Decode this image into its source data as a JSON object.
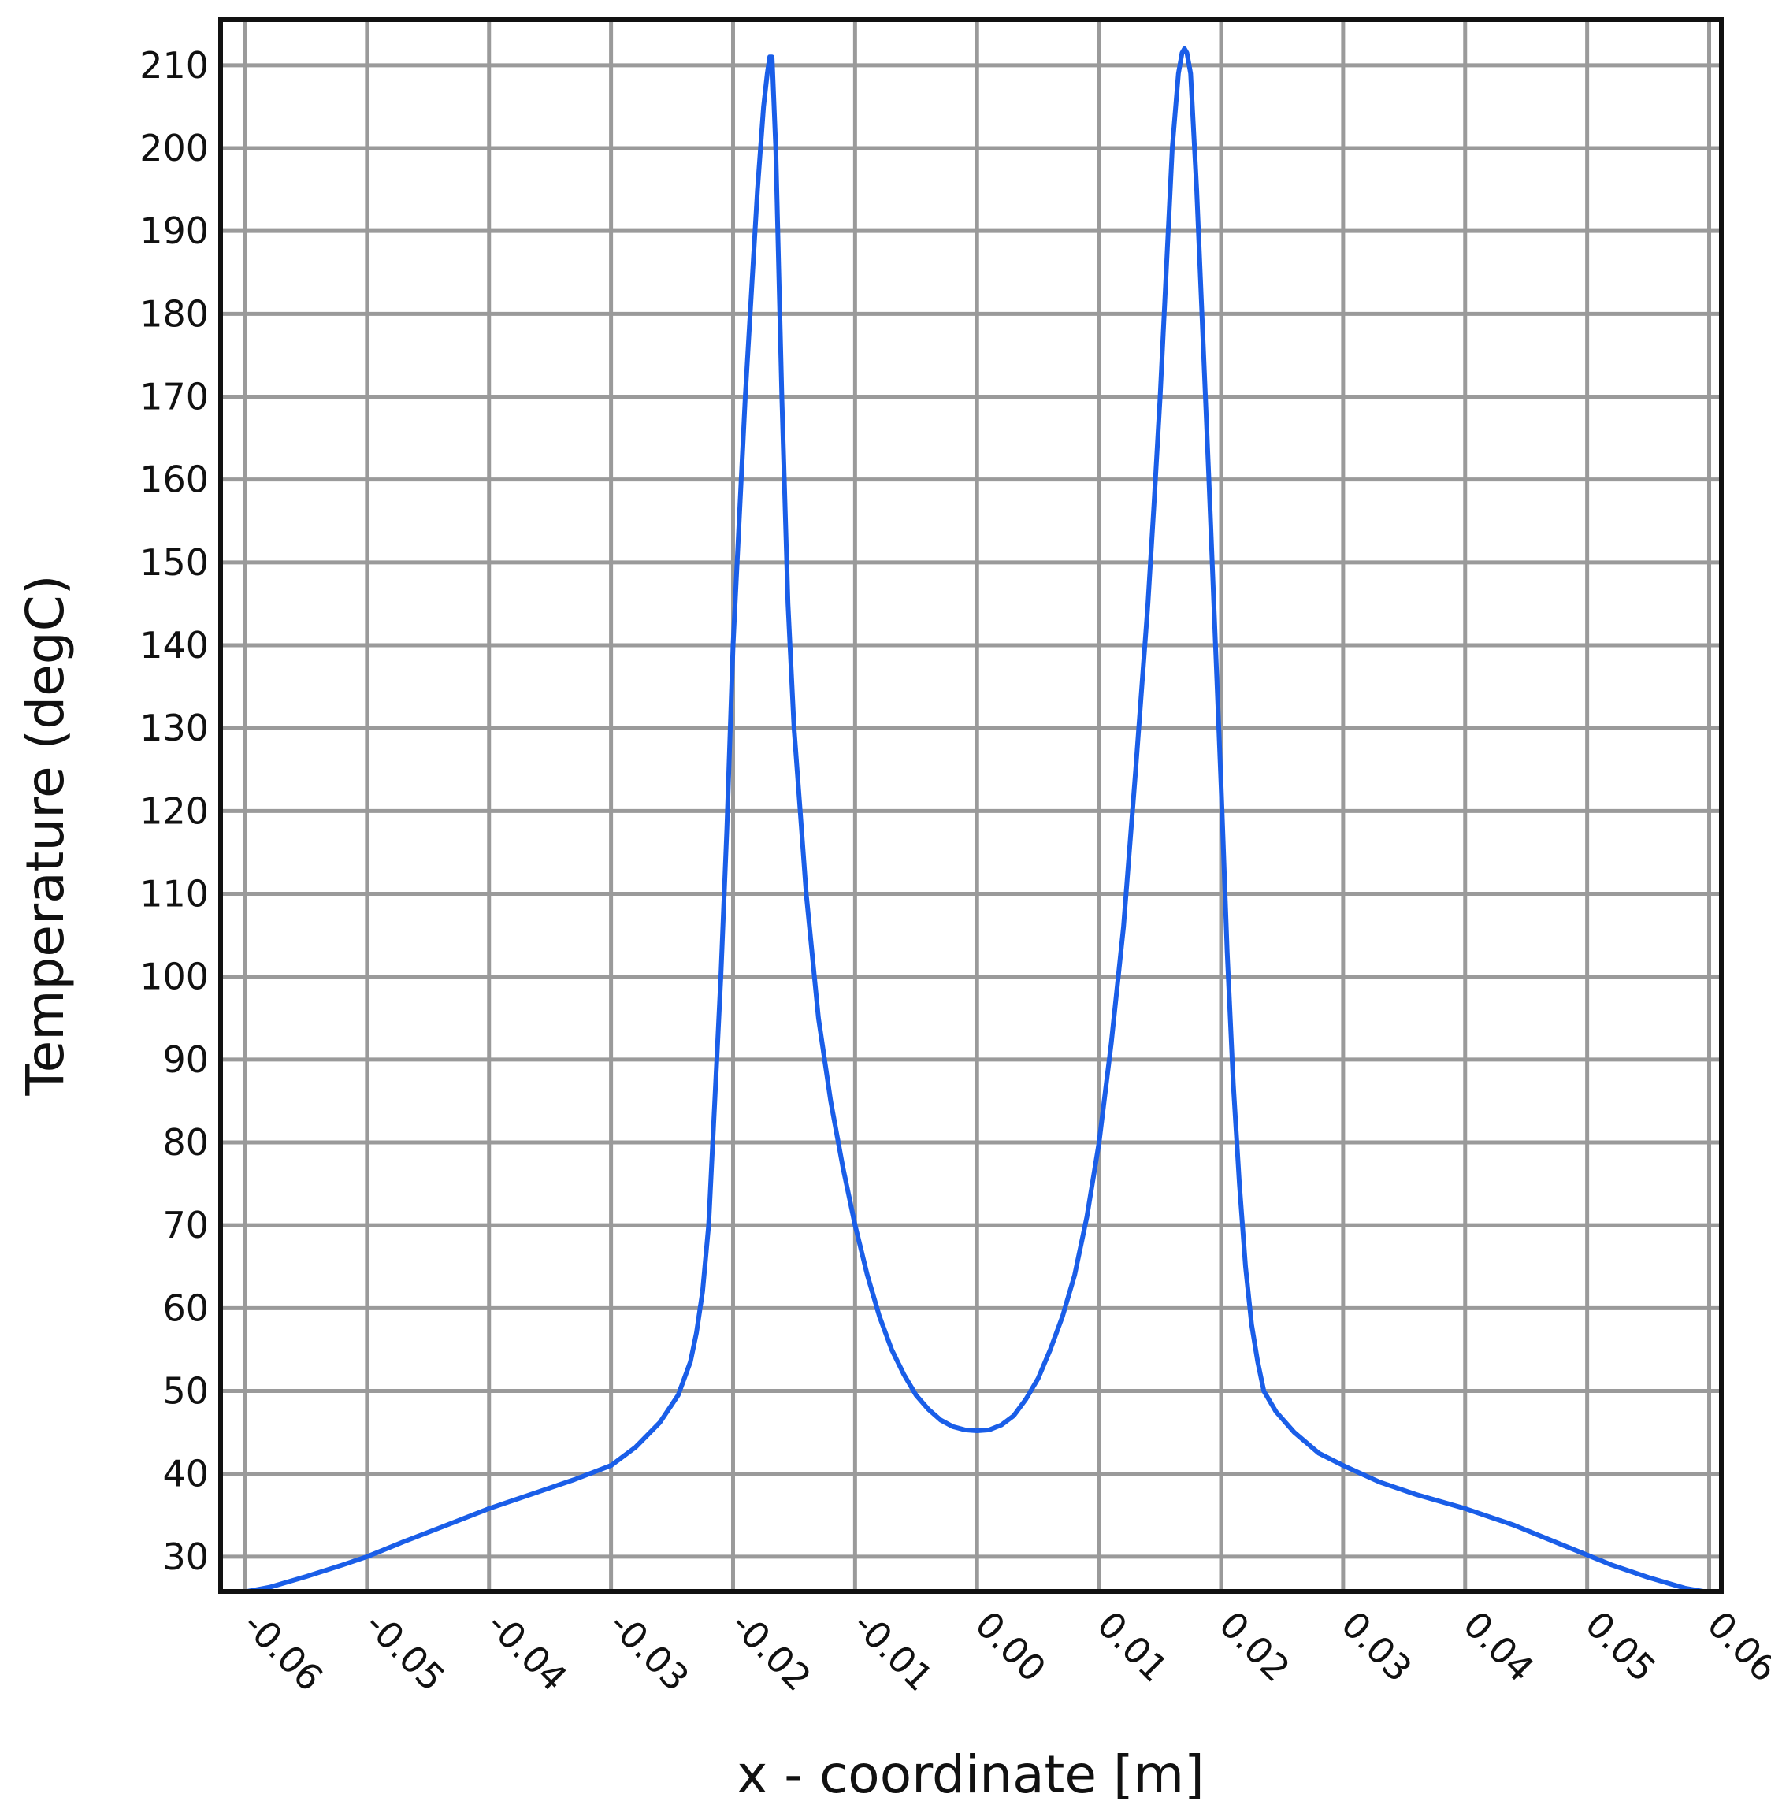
{
  "chart_data": {
    "type": "line",
    "title": "",
    "xlabel": "x - coordinate [m]",
    "ylabel": "Temperature (degC)",
    "xlim": [
      -0.062,
      0.061
    ],
    "ylim": [
      25.8,
      215.5
    ],
    "grid": true,
    "x_ticks": [
      -0.06,
      -0.05,
      -0.04,
      -0.03,
      -0.02,
      -0.01,
      0.0,
      0.01,
      0.02,
      0.03,
      0.04,
      0.05,
      0.06
    ],
    "x_tick_labels": [
      "-0.06",
      "-0.05",
      "-0.04",
      "-0.03",
      "-0.02",
      "-0.01",
      "0.00",
      "0.01",
      "0.02",
      "0.03",
      "0.04",
      "0.05",
      "0.06"
    ],
    "y_ticks": [
      30,
      40,
      50,
      60,
      70,
      80,
      90,
      100,
      110,
      120,
      130,
      140,
      150,
      160,
      170,
      180,
      190,
      200,
      210
    ],
    "y_tick_labels": [
      "30",
      "40",
      "50",
      "60",
      "70",
      "80",
      "90",
      "100",
      "110",
      "120",
      "130",
      "140",
      "150",
      "160",
      "170",
      "180",
      "190",
      "200",
      "210"
    ],
    "line_color": "#1a5ee8",
    "series": [
      {
        "x": [
          -0.0598,
          -0.058,
          -0.055,
          -0.052,
          -0.05,
          -0.047,
          -0.044,
          -0.04,
          -0.036,
          -0.033,
          -0.03,
          -0.028,
          -0.026,
          -0.0245,
          -0.0235,
          -0.023,
          -0.0225,
          -0.022,
          -0.0215,
          -0.021,
          -0.0205,
          -0.02,
          -0.019,
          -0.018,
          -0.0175,
          -0.0172,
          -0.017,
          -0.0168,
          -0.0165,
          -0.016,
          -0.0155,
          -0.015,
          -0.0145,
          -0.014,
          -0.013,
          -0.012,
          -0.011,
          -0.01,
          -0.009,
          -0.008,
          -0.007,
          -0.006,
          -0.005,
          -0.004,
          -0.003,
          -0.002,
          -0.001,
          0.0,
          0.001,
          0.002,
          0.003,
          0.004,
          0.005,
          0.006,
          0.007,
          0.008,
          0.009,
          0.01,
          0.011,
          0.012,
          0.013,
          0.014,
          0.0145,
          0.015,
          0.0155,
          0.016,
          0.0165,
          0.0168,
          0.017,
          0.0172,
          0.0175,
          0.018,
          0.019,
          0.02,
          0.0205,
          0.021,
          0.0215,
          0.022,
          0.0225,
          0.023,
          0.0235,
          0.0245,
          0.026,
          0.028,
          0.03,
          0.033,
          0.036,
          0.04,
          0.044,
          0.047,
          0.05,
          0.052,
          0.055,
          0.058,
          0.0595
        ],
        "y": [
          25.8,
          26.3,
          27.6,
          29.0,
          30.0,
          31.8,
          33.5,
          35.8,
          37.8,
          39.3,
          41.0,
          43.2,
          46.2,
          49.5,
          53.5,
          57.0,
          62.0,
          70.0,
          85.0,
          100.0,
          118.0,
          140.0,
          170.0,
          195.0,
          205.0,
          209.0,
          211.0,
          211.0,
          200.0,
          170.0,
          145.0,
          130.0,
          120.0,
          110.0,
          95.0,
          85.0,
          77.0,
          70.0,
          64.0,
          59.0,
          55.0,
          52.0,
          49.5,
          47.8,
          46.5,
          45.7,
          45.3,
          45.2,
          45.3,
          45.9,
          47.0,
          49.0,
          51.5,
          55.0,
          59.0,
          64.0,
          71.0,
          80.0,
          92.0,
          106.0,
          125.0,
          145.0,
          157.0,
          170.0,
          185.0,
          200.0,
          209.0,
          211.5,
          212.0,
          211.5,
          209.0,
          195.0,
          160.0,
          123.0,
          103.0,
          87.0,
          75.0,
          65.0,
          58.0,
          53.5,
          50.0,
          47.5,
          45.0,
          42.5,
          41.0,
          39.0,
          37.5,
          35.8,
          33.8,
          32.0,
          30.2,
          29.0,
          27.5,
          26.2,
          25.8
        ]
      }
    ]
  }
}
